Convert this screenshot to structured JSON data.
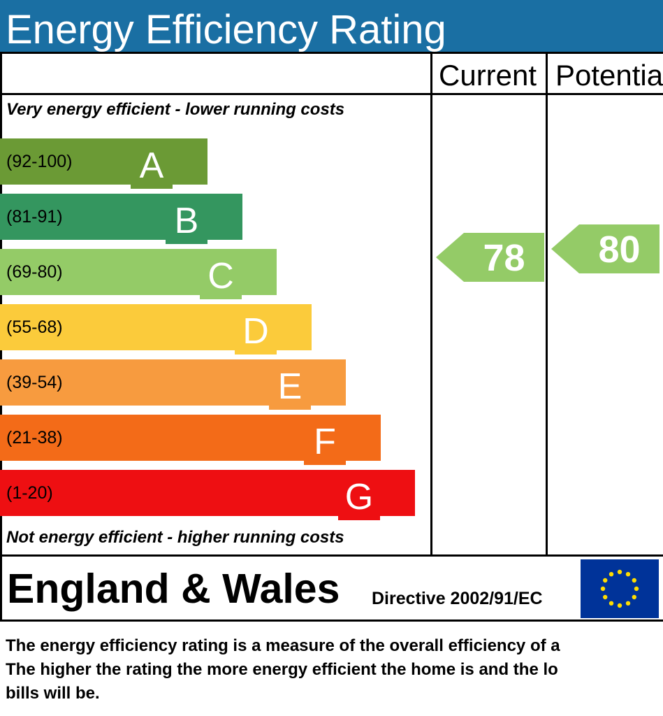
{
  "title": "Energy Efficiency Rating",
  "columns": {
    "current": "Current",
    "potential": "Potentia"
  },
  "top_caption": "Very energy efficient - lower running costs",
  "bottom_caption": "Not energy efficient - higher running costs",
  "footer": {
    "region": "England & Wales",
    "directive": "Directive 2002/91/EC",
    "flag_icon": "eu-flag-icon"
  },
  "description": [
    "The energy efficiency rating is a measure of the overall efficiency of a",
    "The higher the rating the more energy efficient the home is and the lo",
    "bills will be."
  ],
  "chart_data": {
    "type": "bar",
    "bands": [
      {
        "range": "(92-100)",
        "letter": "A",
        "color": "#6b9a35"
      },
      {
        "range": "(81-91)",
        "letter": "B",
        "color": "#34965f"
      },
      {
        "range": "(69-80)",
        "letter": "C",
        "color": "#94cb67"
      },
      {
        "range": "(55-68)",
        "letter": "D",
        "color": "#fbcb3b"
      },
      {
        "range": "(39-54)",
        "letter": "E",
        "color": "#f79b3f"
      },
      {
        "range": "(21-38)",
        "letter": "F",
        "color": "#f36b18"
      },
      {
        "range": "(1-20)",
        "letter": "G",
        "color": "#ee0f12"
      }
    ],
    "current": {
      "value": 78,
      "band": "C",
      "color": "#94cb67"
    },
    "potential": {
      "value": 80,
      "band": "C",
      "color": "#94cb67"
    }
  }
}
